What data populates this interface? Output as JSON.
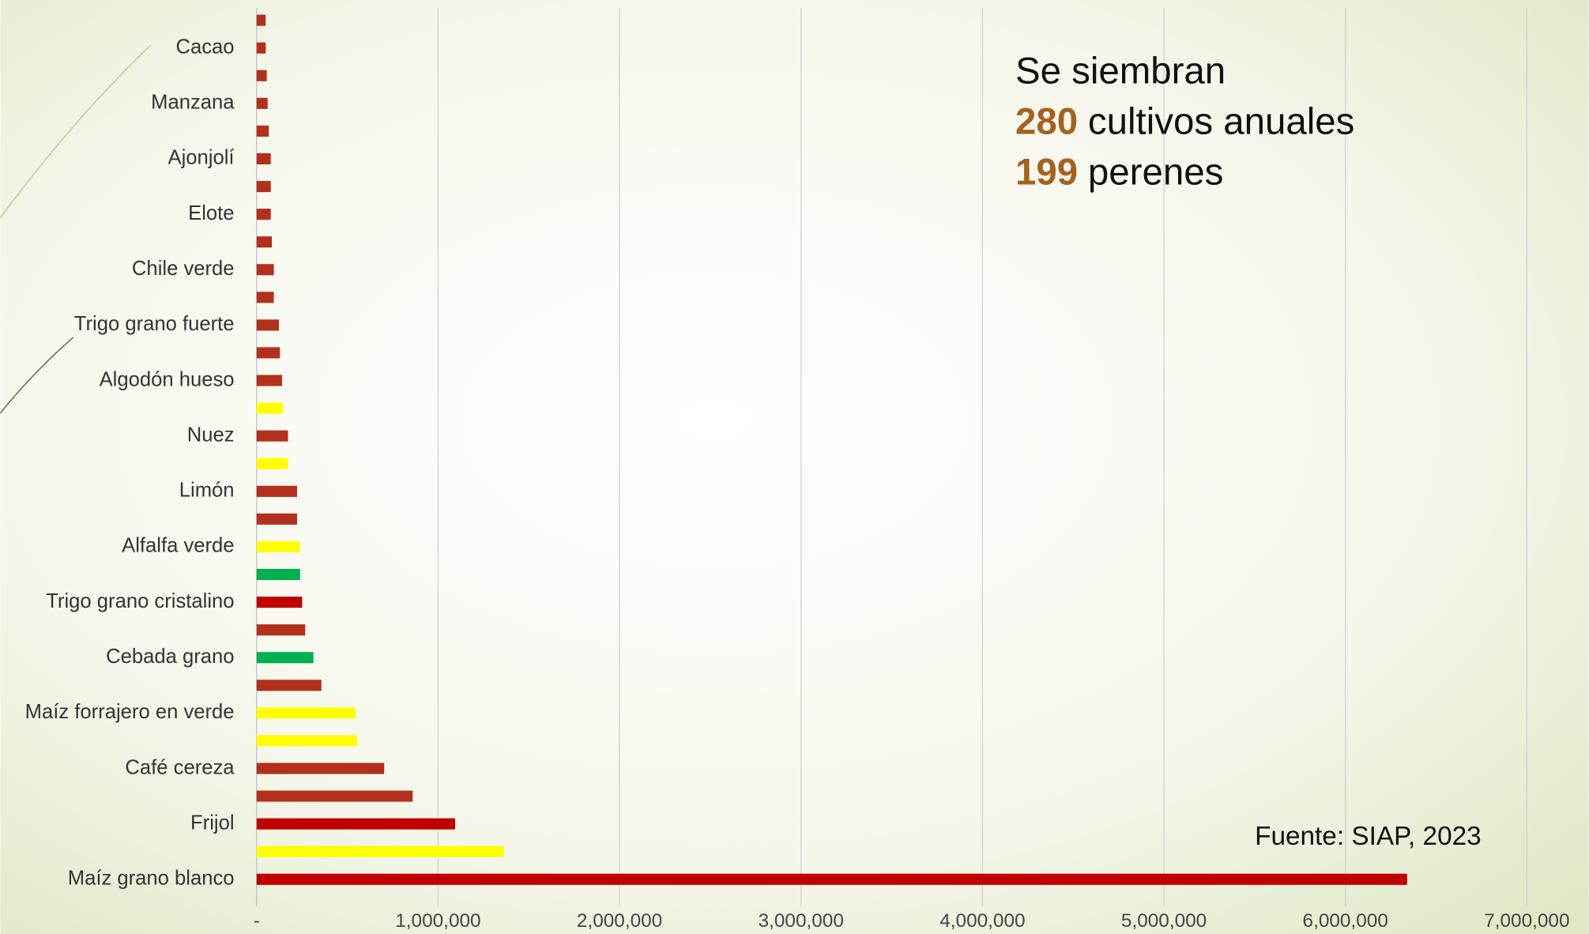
{
  "chart_data": {
    "type": "bar",
    "orientation": "horizontal",
    "categories": [
      "Maíz grano blanco",
      null,
      "Frijol",
      null,
      "Café cereza",
      null,
      "Maíz forrajero en verde",
      null,
      "Cebada grano",
      null,
      "Trigo grano cristalino",
      null,
      "Alfalfa verde",
      null,
      "Limón",
      null,
      "Nuez",
      null,
      "Algodón hueso",
      null,
      "Trigo grano fuerte",
      null,
      "Chile verde",
      null,
      "Elote",
      null,
      "Ajonjolí",
      null,
      "Manzana",
      null,
      "Cacao",
      null
    ],
    "values": [
      6340000,
      1362000,
      1094000,
      860000,
      703000,
      553000,
      547000,
      357000,
      313000,
      268000,
      251000,
      240000,
      240000,
      223000,
      223000,
      173000,
      173000,
      145000,
      140000,
      128000,
      123000,
      95000,
      95000,
      84000,
      78000,
      78000,
      78000,
      67000,
      61000,
      56000,
      50000,
      50000
    ],
    "colors": [
      "#c00000",
      "#ffff00",
      "#c00000",
      "#b3301c",
      "#b3301c",
      "#ffff00",
      "#ffff00",
      "#b3301c",
      "#00b050",
      "#b3301c",
      "#c00000",
      "#00b050",
      "#ffff00",
      "#b3301c",
      "#b3301c",
      "#ffff00",
      "#b3301c",
      "#ffff00",
      "#b3301c",
      "#b3301c",
      "#b3301c",
      "#b3301c",
      "#b3301c",
      "#b3301c",
      "#b3301c",
      "#b3301c",
      "#b3301c",
      "#b3301c",
      "#b3301c",
      "#b3301c",
      "#b3301c",
      "#b3301c"
    ],
    "xlim": [
      0,
      7000000
    ],
    "xticks": [
      {
        "value": 0,
        "label": "-"
      },
      {
        "value": 1000000,
        "label": "1,000,000"
      },
      {
        "value": 2000000,
        "label": "2,000,000"
      },
      {
        "value": 3000000,
        "label": "3,000,000"
      },
      {
        "value": 4000000,
        "label": "4,000,000"
      },
      {
        "value": 5000000,
        "label": "5,000,000"
      },
      {
        "value": 6000000,
        "label": "6,000,000"
      },
      {
        "value": 7000000,
        "label": "7,000,000"
      }
    ],
    "grid": true,
    "annotation_lines": [
      [
        "Se siembran"
      ],
      [
        "280",
        "cultivos anuales"
      ],
      [
        "199",
        "perenes"
      ]
    ],
    "annotation_highlight_color": "#a5621c",
    "source": "Fuente: SIAP, 2023"
  }
}
